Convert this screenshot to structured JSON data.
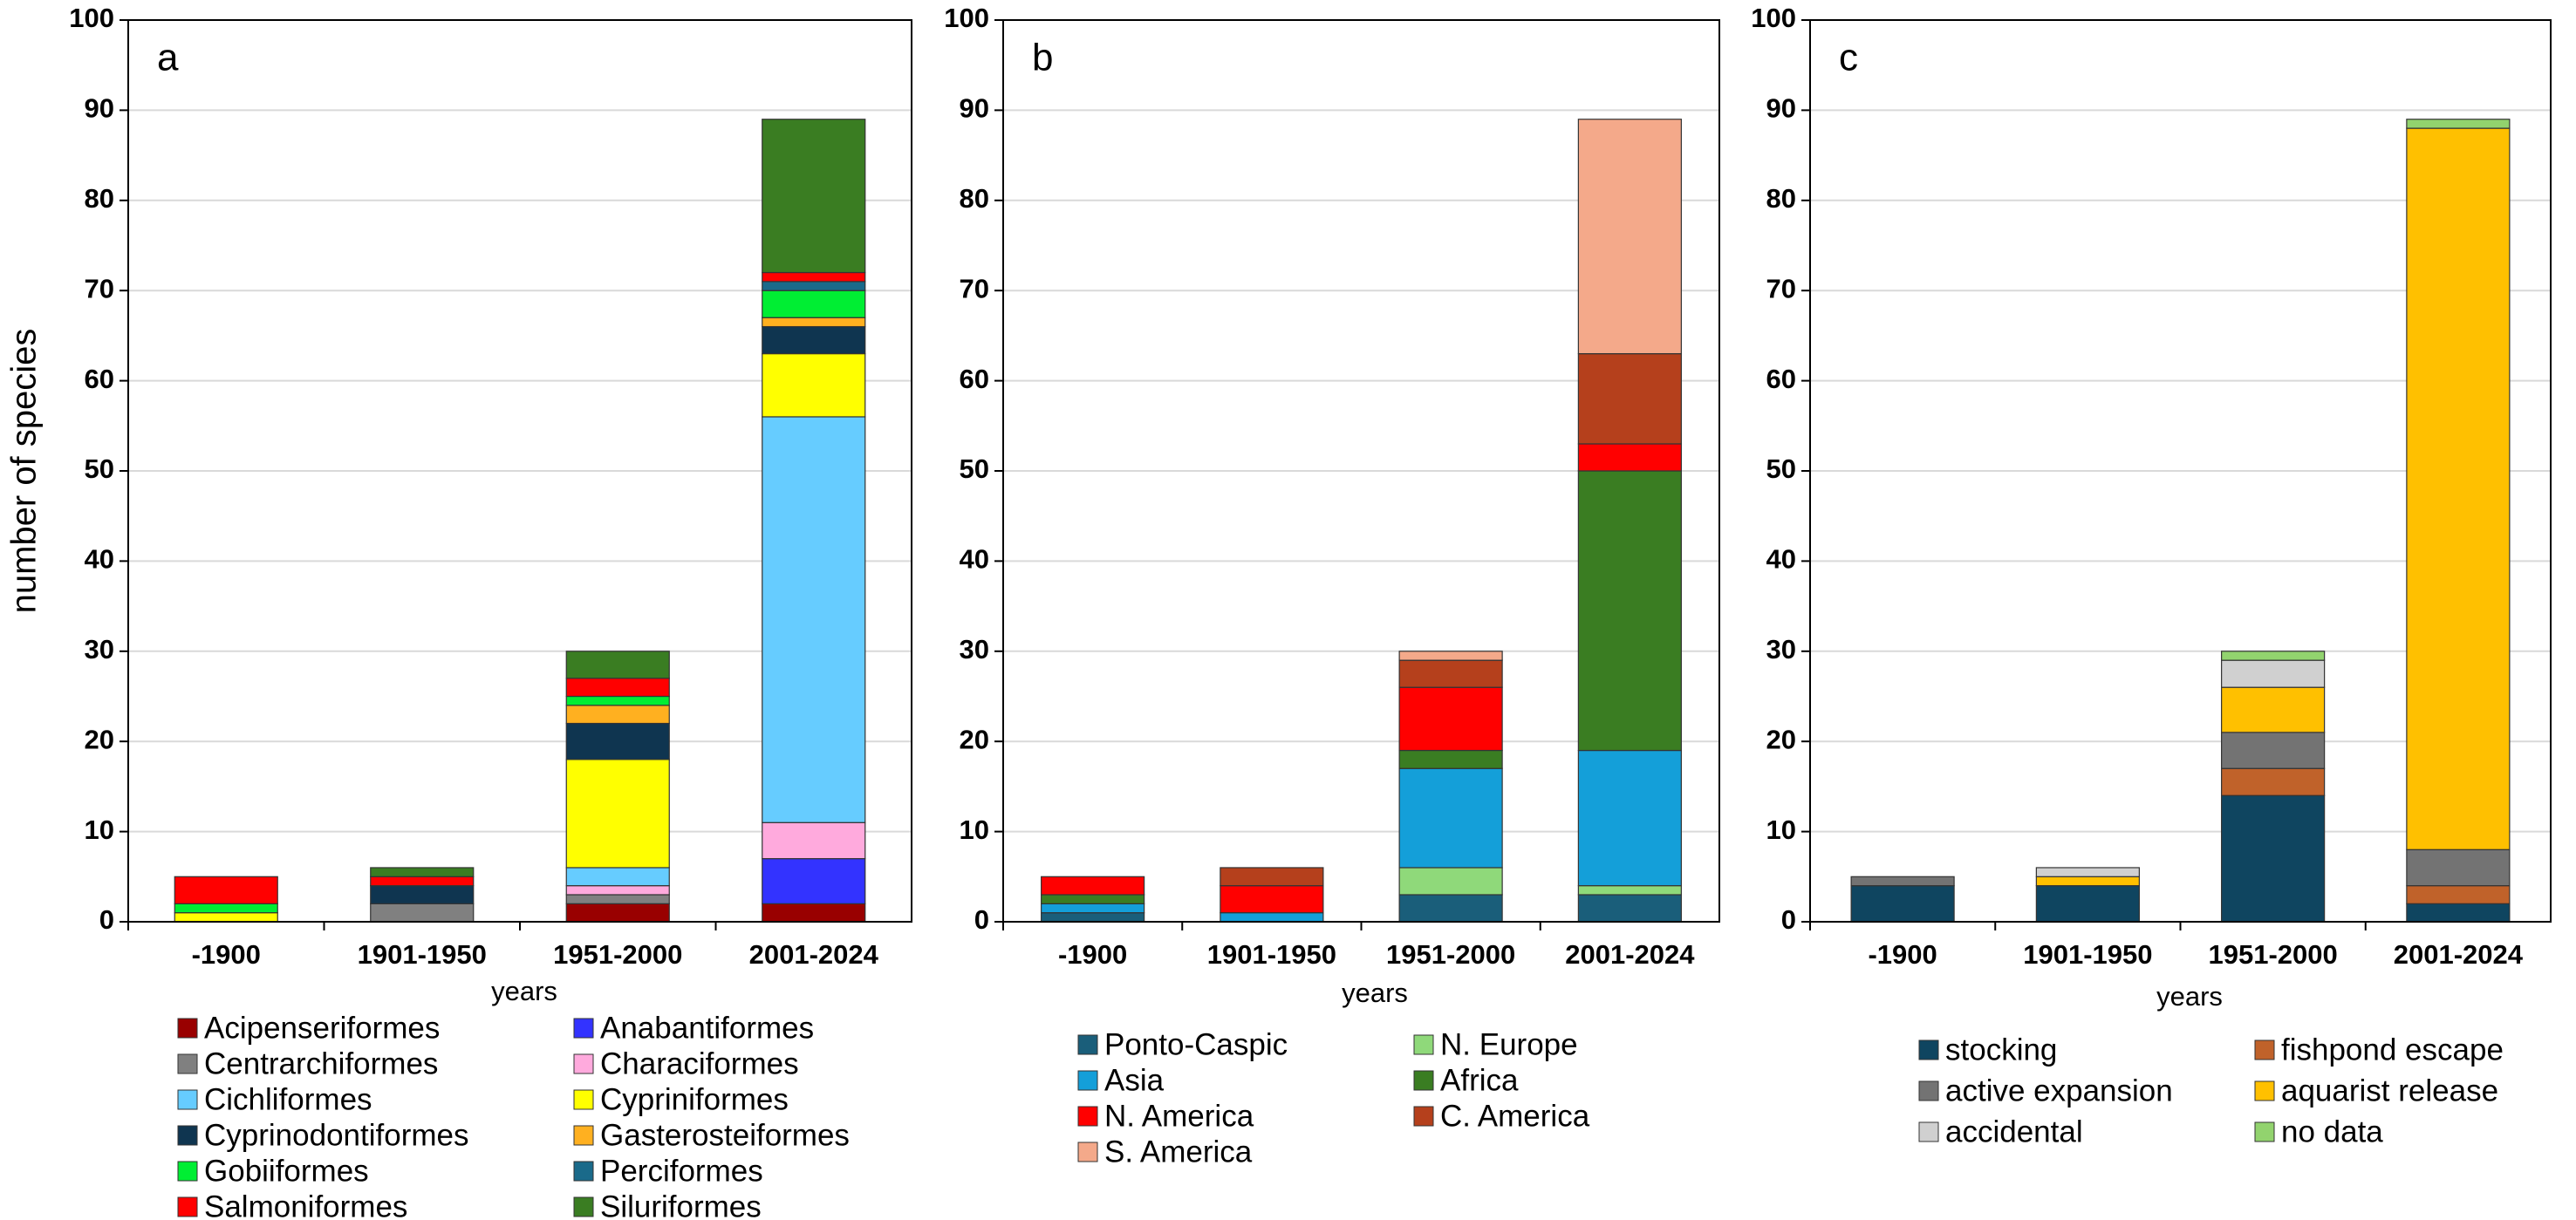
{
  "chart_data": [
    {
      "type": "bar",
      "stacked": true,
      "label": "a",
      "ylabel": "number of species",
      "xlabel": "years",
      "categories": [
        "-1900",
        "1901-1950",
        "1951-2000",
        "2001-2024"
      ],
      "ylim": [
        0,
        100
      ],
      "yticks": [
        0,
        10,
        20,
        30,
        40,
        50,
        60,
        70,
        80,
        90,
        100
      ],
      "grid": true,
      "series": [
        {
          "name": "Acipenseriformes",
          "color": "#990000",
          "values": [
            0,
            0,
            2,
            2
          ]
        },
        {
          "name": "Anabantiformes",
          "color": "#3333ff",
          "values": [
            0,
            0,
            0,
            5
          ]
        },
        {
          "name": "Centrarchiformes",
          "color": "#808080",
          "values": [
            0,
            2,
            1,
            0
          ]
        },
        {
          "name": "Characiformes",
          "color": "#ffaadd",
          "values": [
            0,
            0,
            1,
            4
          ]
        },
        {
          "name": "Cichliformes",
          "color": "#66ccff",
          "values": [
            0,
            0,
            2,
            45
          ]
        },
        {
          "name": "Cypriniformes",
          "color": "#ffff00",
          "values": [
            1,
            0,
            12,
            7
          ]
        },
        {
          "name": "Cyprinodontiformes",
          "color": "#0f3550",
          "values": [
            0,
            2,
            4,
            3
          ]
        },
        {
          "name": "Gasterosteiformes",
          "color": "#ffb020",
          "values": [
            0,
            0,
            2,
            1
          ]
        },
        {
          "name": "Gobiiformes",
          "color": "#00ee33",
          "values": [
            1,
            0,
            1,
            3
          ]
        },
        {
          "name": "Perciformes",
          "color": "#1a6a8a",
          "values": [
            0,
            0,
            0,
            1
          ]
        },
        {
          "name": "Salmoniformes",
          "color": "#ff0000",
          "values": [
            3,
            1,
            2,
            1
          ]
        },
        {
          "name": "Siluriformes",
          "color": "#3a7d22",
          "values": [
            0,
            1,
            3,
            17
          ]
        }
      ]
    },
    {
      "type": "bar",
      "stacked": true,
      "label": "b",
      "xlabel": "years",
      "categories": [
        "-1900",
        "1901-1950",
        "1951-2000",
        "2001-2024"
      ],
      "ylim": [
        0,
        100
      ],
      "yticks": [
        0,
        10,
        20,
        30,
        40,
        50,
        60,
        70,
        80,
        90,
        100
      ],
      "grid": true,
      "series": [
        {
          "name": "Ponto-Caspic",
          "color": "#1a5e7a",
          "values": [
            1,
            0,
            3,
            3
          ]
        },
        {
          "name": "N. Europe",
          "color": "#8fd97a",
          "values": [
            0,
            0,
            3,
            1
          ]
        },
        {
          "name": "Asia",
          "color": "#149fd9",
          "values": [
            1,
            1,
            11,
            15
          ]
        },
        {
          "name": "Africa",
          "color": "#3a7d22",
          "values": [
            1,
            0,
            2,
            31
          ]
        },
        {
          "name": "N. America",
          "color": "#ff0000",
          "values": [
            2,
            3,
            7,
            3
          ]
        },
        {
          "name": "C. America",
          "color": "#b5401c",
          "values": [
            0,
            2,
            3,
            10
          ]
        },
        {
          "name": "S. America",
          "color": "#f4a98a",
          "values": [
            0,
            0,
            1,
            26
          ]
        }
      ]
    },
    {
      "type": "bar",
      "stacked": true,
      "label": "c",
      "xlabel": "years",
      "categories": [
        "-1900",
        "1901-1950",
        "1951-2000",
        "2001-2024"
      ],
      "ylim": [
        0,
        100
      ],
      "yticks": [
        0,
        10,
        20,
        30,
        40,
        50,
        60,
        70,
        80,
        90,
        100
      ],
      "grid": true,
      "series": [
        {
          "name": "stocking",
          "color": "#0f4560",
          "values": [
            4,
            4,
            14,
            2
          ]
        },
        {
          "name": "fishpond escape",
          "color": "#c0622a",
          "values": [
            0,
            0,
            3,
            2
          ]
        },
        {
          "name": "active expansion",
          "color": "#737373",
          "values": [
            1,
            0,
            4,
            4
          ]
        },
        {
          "name": "aquarist release",
          "color": "#ffc000",
          "values": [
            0,
            1,
            5,
            80
          ]
        },
        {
          "name": "accidental",
          "color": "#d0d0d0",
          "values": [
            0,
            1,
            3,
            0
          ]
        },
        {
          "name": "no data",
          "color": "#92d36e",
          "values": [
            0,
            0,
            1,
            1
          ]
        }
      ]
    }
  ]
}
